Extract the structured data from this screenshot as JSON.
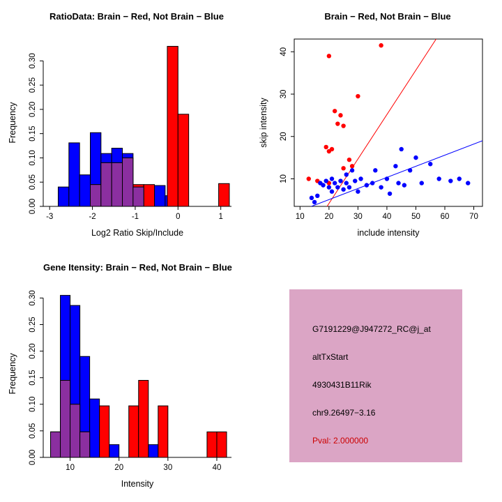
{
  "colors": {
    "red": "#FF0000",
    "blue": "#0000FF",
    "overlap": "#8B2FA0",
    "axis": "#000000",
    "box_bg": "#DBA5C5",
    "pval": "#CC0000"
  },
  "info_box": {
    "lines": [
      "G7191229@J947272_RC@j_at",
      "altTxStart",
      "4930431B11Rik",
      "chr9.26497−3.16"
    ],
    "pval": "Pval: 2.000000"
  },
  "chart_data": [
    {
      "id": "ratio-histogram",
      "type": "bar",
      "subtype": "overlaid-histogram",
      "title": "RatioData: Brain − Red, Not Brain − Blue",
      "xlabel": "Log2 Ratio Skip/Include",
      "ylabel": "Frequency",
      "xlim": [
        -3.15,
        1.25
      ],
      "ylim": [
        0,
        0.345
      ],
      "xticks": [
        -3,
        -2,
        -1,
        0,
        1
      ],
      "yticks": [
        0,
        0.05,
        0.1,
        0.15,
        0.2,
        0.25,
        0.3
      ],
      "ytick_decimals": 2,
      "frame": "axes",
      "bin_width": 0.25,
      "series": [
        {
          "name": "Not Brain (blue)",
          "color": "blue",
          "bins": [
            [
              -2.8,
              0.04
            ],
            [
              -2.55,
              0.131
            ],
            [
              -2.3,
              0.065
            ],
            [
              -2.05,
              0.152
            ],
            [
              -1.8,
              0.109
            ],
            [
              -1.55,
              0.12
            ],
            [
              -1.3,
              0.109
            ],
            [
              -1.05,
              0.04
            ],
            [
              -0.55,
              0.043
            ],
            [
              -0.3,
              0.022
            ]
          ]
        },
        {
          "name": "Brain (red)",
          "color": "red",
          "bins": [
            [
              -2.05,
              0.045
            ],
            [
              -1.8,
              0.09
            ],
            [
              -1.55,
              0.09
            ],
            [
              -1.3,
              0.1
            ],
            [
              -1.05,
              0.045
            ],
            [
              -0.8,
              0.045
            ],
            [
              -0.25,
              0.33
            ],
            [
              0.0,
              0.19
            ],
            [
              0.95,
              0.047
            ]
          ]
        },
        {
          "name": "Overlap (purple)",
          "color": "overlap",
          "bins": [
            [
              -2.05,
              0.045
            ],
            [
              -1.8,
              0.09
            ],
            [
              -1.55,
              0.09
            ],
            [
              -1.3,
              0.1
            ],
            [
              -1.05,
              0.04
            ]
          ]
        }
      ]
    },
    {
      "id": "intensity-scatter",
      "type": "scatter",
      "title": "Brain − Red, Not Brain − Blue",
      "xlabel": "include intensity",
      "ylabel": "skip intensity",
      "xlim": [
        8,
        73
      ],
      "ylim": [
        3.5,
        43
      ],
      "xticks": [
        10,
        20,
        30,
        40,
        50,
        60,
        70
      ],
      "yticks": [
        10,
        20,
        30,
        40
      ],
      "frame": "box",
      "series": [
        {
          "name": "Brain (red)",
          "color": "red",
          "points": [
            [
              20,
              39
            ],
            [
              38,
              41.5
            ],
            [
              30,
              29.5
            ],
            [
              22,
              26
            ],
            [
              24,
              25
            ],
            [
              23,
              23
            ],
            [
              25,
              22.5
            ],
            [
              19,
              17.5
            ],
            [
              21,
              17
            ],
            [
              20,
              16.5
            ],
            [
              27,
              14.5
            ],
            [
              28,
              13
            ],
            [
              25,
              12.5
            ],
            [
              13,
              10
            ],
            [
              16,
              9.5
            ],
            [
              20,
              9
            ]
          ]
        },
        {
          "name": "Not Brain (blue)",
          "color": "blue",
          "points": [
            [
              14,
              5.5
            ],
            [
              15,
              4.5
            ],
            [
              16,
              6
            ],
            [
              17,
              9
            ],
            [
              18,
              8.5
            ],
            [
              19,
              9.5
            ],
            [
              20,
              8
            ],
            [
              21,
              7
            ],
            [
              21,
              10
            ],
            [
              22,
              9
            ],
            [
              23,
              8
            ],
            [
              24,
              9.5
            ],
            [
              25,
              7.5
            ],
            [
              26,
              9
            ],
            [
              26,
              11
            ],
            [
              27,
              8
            ],
            [
              28,
              12
            ],
            [
              29,
              9.5
            ],
            [
              30,
              7
            ],
            [
              31,
              10
            ],
            [
              33,
              8.5
            ],
            [
              35,
              9
            ],
            [
              36,
              12
            ],
            [
              38,
              8
            ],
            [
              40,
              10
            ],
            [
              41,
              6.5
            ],
            [
              43,
              13
            ],
            [
              44,
              9
            ],
            [
              45,
              17
            ],
            [
              46,
              8.5
            ],
            [
              48,
              12
            ],
            [
              50,
              15
            ],
            [
              52,
              9
            ],
            [
              55,
              13.5
            ],
            [
              58,
              10
            ],
            [
              62,
              9.5
            ],
            [
              65,
              10
            ],
            [
              68,
              9
            ]
          ]
        }
      ],
      "lines": [
        {
          "name": "brain-fit-line",
          "color": "red",
          "x1": 16,
          "y1": 0,
          "x2": 57,
          "y2": 43
        },
        {
          "name": "not-brain-fit-line",
          "color": "blue",
          "x1": 12,
          "y1": 3,
          "x2": 73,
          "y2": 19
        }
      ]
    },
    {
      "id": "gene-intensity-histogram",
      "type": "bar",
      "subtype": "overlaid-histogram",
      "title": "Gene Itensity: Brain − Red, Not Brain − Blue",
      "xlabel": "Intensity",
      "ylabel": "Frequency",
      "xlim": [
        4.5,
        43
      ],
      "ylim": [
        0,
        0.315
      ],
      "xticks": [
        10,
        20,
        30,
        40
      ],
      "yticks": [
        0,
        0.05,
        0.1,
        0.15,
        0.2,
        0.25,
        0.3
      ],
      "ytick_decimals": 2,
      "frame": "axes",
      "bin_width": 2,
      "series": [
        {
          "name": "Not Brain (blue)",
          "color": "blue",
          "bins": [
            [
              6,
              0.048
            ],
            [
              8,
              0.305
            ],
            [
              10,
              0.286
            ],
            [
              12,
              0.19
            ],
            [
              14,
              0.11
            ],
            [
              18,
              0.024
            ],
            [
              26,
              0.024
            ]
          ]
        },
        {
          "name": "Brain (red)",
          "color": "red",
          "bins": [
            [
              6,
              0.048
            ],
            [
              8,
              0.145
            ],
            [
              10,
              0.1
            ],
            [
              12,
              0.048
            ],
            [
              16,
              0.097
            ],
            [
              22,
              0.097
            ],
            [
              24,
              0.145
            ],
            [
              28,
              0.097
            ],
            [
              38,
              0.048
            ],
            [
              40,
              0.048
            ]
          ]
        },
        {
          "name": "Overlap (purple)",
          "color": "overlap",
          "bins": [
            [
              6,
              0.048
            ],
            [
              8,
              0.145
            ],
            [
              10,
              0.1
            ],
            [
              12,
              0.048
            ]
          ]
        }
      ]
    }
  ]
}
